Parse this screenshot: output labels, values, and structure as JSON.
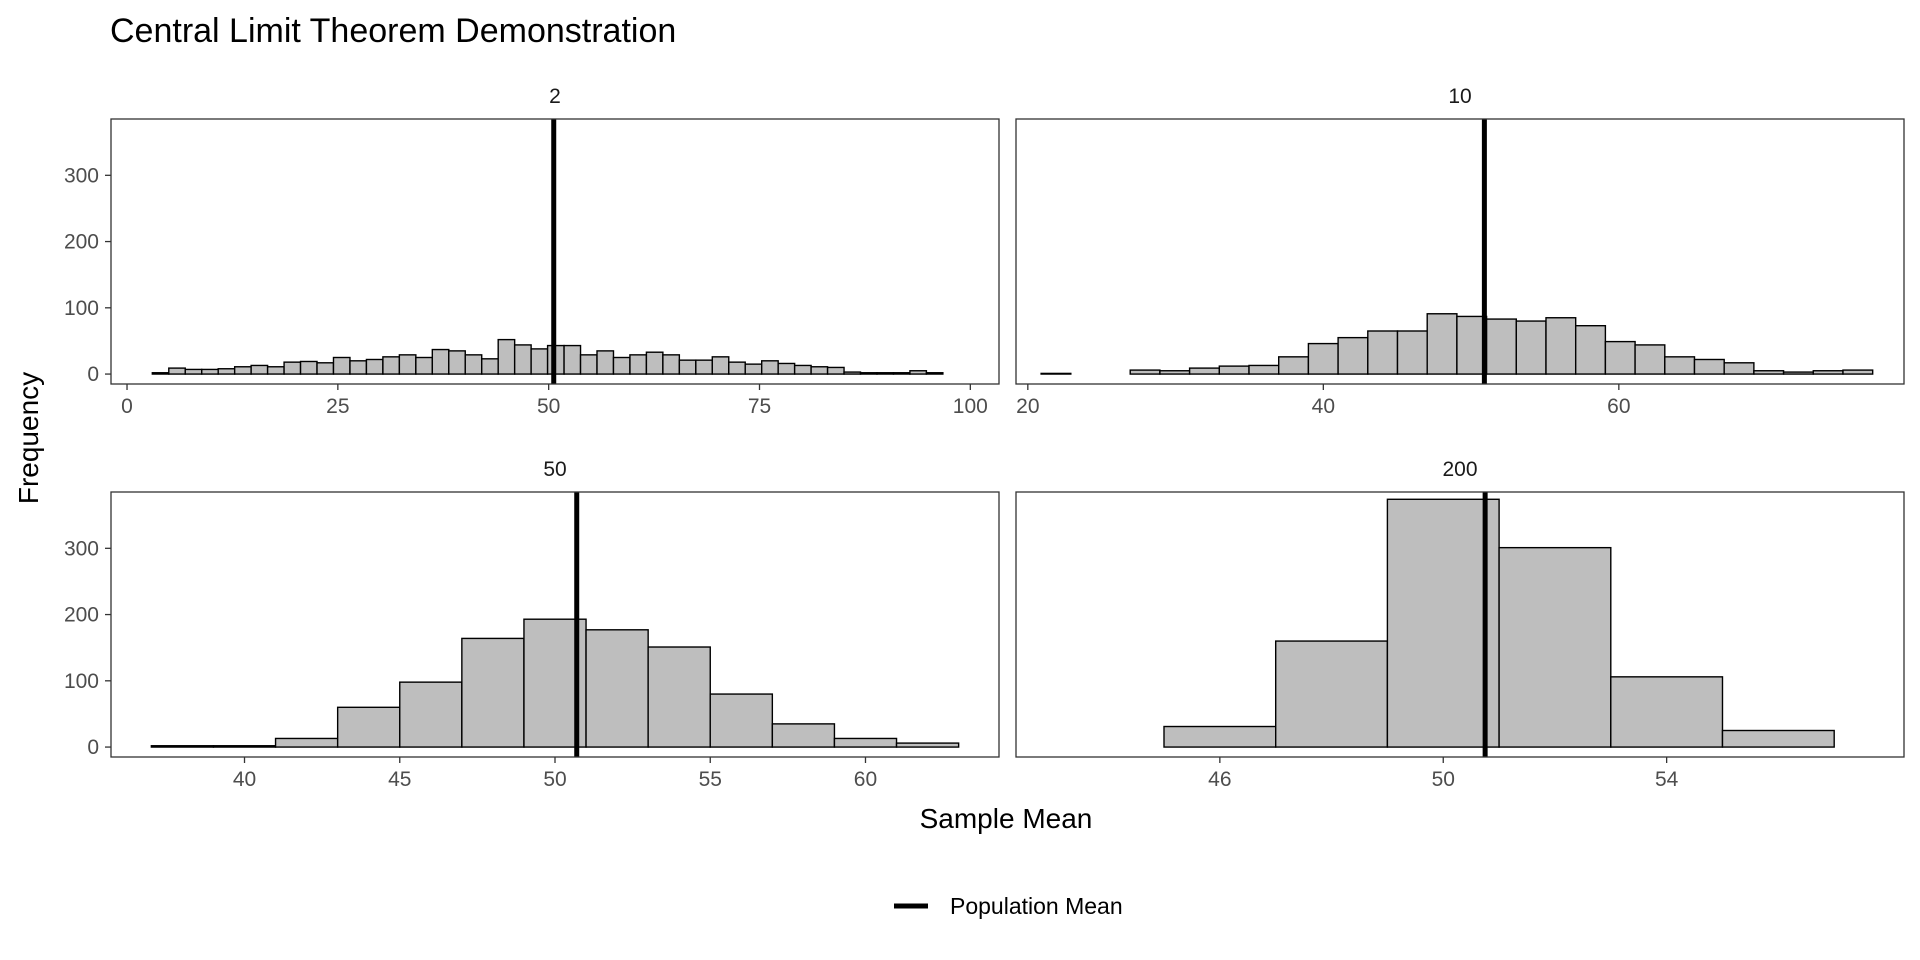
{
  "chart_data": {
    "type": "histogram-facets",
    "title": "Central Limit Theorem Demonstration",
    "xlabel": "Sample Mean",
    "ylabel": "Frequency",
    "shared_y": {
      "ylim": [
        -15,
        385
      ],
      "ticks": [
        0,
        100,
        200,
        300
      ]
    },
    "legend": {
      "position": "bottom",
      "entries": [
        {
          "label": "Population Mean",
          "color": "#000000"
        }
      ]
    },
    "bar_fill": "#bebebe",
    "bar_stroke": "#000000",
    "panels": [
      {
        "label": "2",
        "xlim": [
          -1.9,
          103.4
        ],
        "xticks": [
          0,
          25,
          50,
          75,
          100
        ],
        "population_mean": 50.6,
        "bins": {
          "start": 3.0,
          "width": 1.953,
          "counts": [
            2,
            9,
            7,
            7,
            8,
            11,
            13,
            11,
            18,
            19,
            17,
            25,
            20,
            22,
            26,
            29,
            25,
            37,
            35,
            29,
            23,
            52,
            44,
            38,
            43,
            43,
            29,
            35,
            25,
            29,
            33,
            29,
            21,
            21,
            26,
            18,
            15,
            20,
            16,
            13,
            11,
            10,
            3,
            2,
            2,
            2,
            5,
            2
          ]
        }
      },
      {
        "label": "10",
        "xlim": [
          19.2,
          79.3
        ],
        "xticks": [
          20,
          40,
          60
        ],
        "population_mean": 50.9,
        "bins": {
          "start": 20.9,
          "width": 2.01,
          "counts": [
            1,
            0,
            0,
            6,
            5,
            9,
            12,
            13,
            26,
            46,
            55,
            65,
            65,
            91,
            87,
            83,
            80,
            85,
            73,
            49,
            44,
            26,
            22,
            17,
            5,
            3,
            5,
            6
          ]
        }
      },
      {
        "label": "50",
        "xlim": [
          35.7,
          64.3
        ],
        "xticks": [
          40,
          45,
          50,
          55,
          60
        ],
        "population_mean": 50.7,
        "bins": {
          "start": 37.0,
          "width": 2.0,
          "counts": [
            2,
            2,
            13,
            60,
            98,
            164,
            193,
            177,
            151,
            80,
            35,
            13,
            6
          ]
        }
      },
      {
        "label": "200",
        "xlim": [
          42.35,
          58.25
        ],
        "xticks": [
          46,
          50,
          54
        ],
        "population_mean": 50.75,
        "bins": {
          "start": 43.0,
          "width": 2.0,
          "counts": [
            0,
            31,
            160,
            374,
            301,
            106,
            25
          ]
        }
      }
    ]
  }
}
